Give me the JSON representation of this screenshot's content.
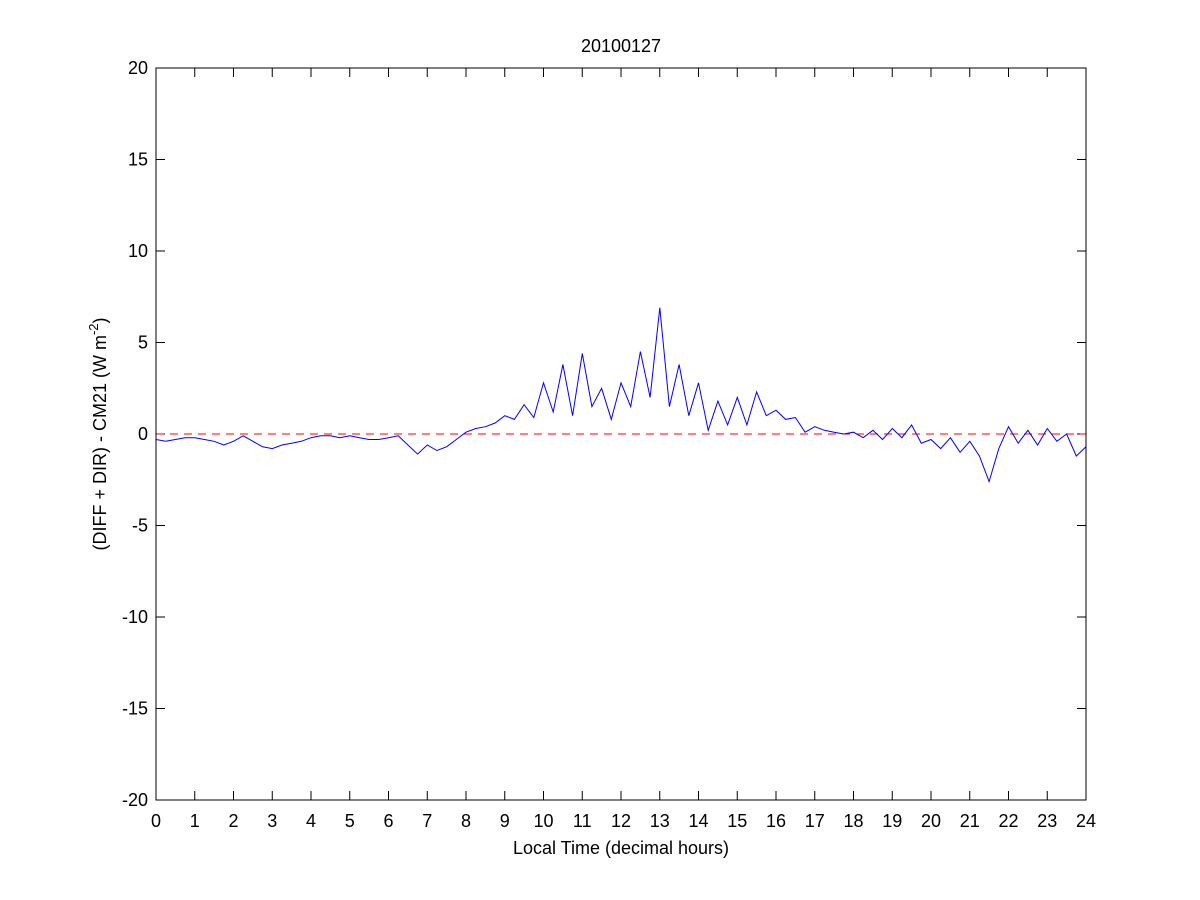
{
  "chart_data": {
    "type": "line",
    "title": "20100127",
    "xlabel": "Local Time (decimal hours)",
    "ylabel": {
      "text": "(DIFF + DIR) - CM21 (W m",
      "sup": "-2",
      "end": ")"
    },
    "x": [
      0,
      0.25,
      0.5,
      0.75,
      1,
      1.25,
      1.5,
      1.75,
      2,
      2.25,
      2.5,
      2.75,
      3,
      3.25,
      3.5,
      3.75,
      4,
      4.25,
      4.5,
      4.75,
      5,
      5.25,
      5.5,
      5.75,
      6,
      6.25,
      6.5,
      6.75,
      7,
      7.25,
      7.5,
      7.75,
      8,
      8.25,
      8.5,
      8.75,
      9,
      9.25,
      9.5,
      9.75,
      10,
      10.25,
      10.5,
      10.75,
      11,
      11.25,
      11.5,
      11.75,
      12,
      12.25,
      12.5,
      12.75,
      13,
      13.25,
      13.5,
      13.75,
      14,
      14.25,
      14.5,
      14.75,
      15,
      15.25,
      15.5,
      15.75,
      16,
      16.25,
      16.5,
      16.75,
      17,
      17.25,
      17.5,
      17.75,
      18,
      18.25,
      18.5,
      18.75,
      19,
      19.25,
      19.5,
      19.75,
      20,
      20.25,
      20.5,
      20.75,
      21,
      21.25,
      21.5,
      21.75,
      22,
      22.25,
      22.5,
      22.75,
      23,
      23.25,
      23.5,
      23.75,
      24
    ],
    "series": [
      {
        "color": "#0000ff",
        "values": [
          -0.3,
          -0.4,
          -0.3,
          -0.2,
          -0.2,
          -0.3,
          -0.4,
          -0.6,
          -0.4,
          -0.1,
          -0.4,
          -0.7,
          -0.8,
          -0.6,
          -0.5,
          -0.4,
          -0.2,
          -0.1,
          -0.1,
          -0.2,
          -0.1,
          -0.2,
          -0.3,
          -0.3,
          -0.2,
          -0.1,
          -0.6,
          -1.1,
          -0.6,
          -0.9,
          -0.7,
          -0.3,
          0.1,
          0.3,
          0.4,
          0.6,
          1.0,
          0.8,
          1.6,
          0.9,
          2.8,
          1.2,
          3.8,
          1.0,
          4.4,
          1.5,
          2.5,
          0.8,
          2.8,
          1.5,
          4.5,
          2.0,
          6.9,
          1.5,
          3.8,
          1.0,
          2.8,
          0.2,
          1.8,
          0.5,
          2.0,
          0.5,
          2.3,
          1.0,
          1.3,
          0.8,
          0.9,
          0.1,
          0.4,
          0.2,
          0.1,
          0.0,
          0.1,
          -0.2,
          0.2,
          -0.3,
          0.3,
          -0.2,
          0.5,
          -0.5,
          -0.3,
          -0.8,
          -0.2,
          -1.0,
          -0.4,
          -1.2,
          -2.6,
          -0.8,
          0.4,
          -0.5,
          0.2,
          -0.6,
          0.3,
          -0.4,
          0.0,
          -1.2,
          -0.7
        ]
      }
    ],
    "hline": {
      "value": 0,
      "color": "#ff0000",
      "dashed": true
    },
    "xlim": [
      0,
      24
    ],
    "xticks": [
      0,
      1,
      2,
      3,
      4,
      5,
      6,
      7,
      8,
      9,
      10,
      11,
      12,
      13,
      14,
      15,
      16,
      17,
      18,
      19,
      20,
      21,
      22,
      23,
      24
    ],
    "ylim": [
      -20,
      20
    ],
    "yticks": [
      -20,
      -15,
      -10,
      -5,
      0,
      5,
      10,
      15,
      20
    ]
  }
}
